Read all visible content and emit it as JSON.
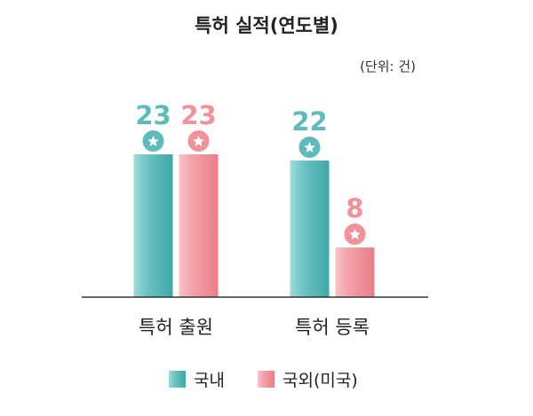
{
  "chart_data": {
    "type": "bar",
    "title": "특허 실적(연도별)",
    "unit_label": "(단위: 건)",
    "categories": [
      "특허 출원",
      "특허 등록"
    ],
    "series": [
      {
        "name": "국내",
        "values": [
          23,
          22
        ],
        "color": "#5dbbbb"
      },
      {
        "name": "국외(미국)",
        "values": [
          23,
          8
        ],
        "color": "#f0929a"
      }
    ],
    "ylim": [
      0,
      25
    ],
    "grid": false,
    "legend_position": "bottom",
    "marker_icon": "star-badge-icon"
  }
}
